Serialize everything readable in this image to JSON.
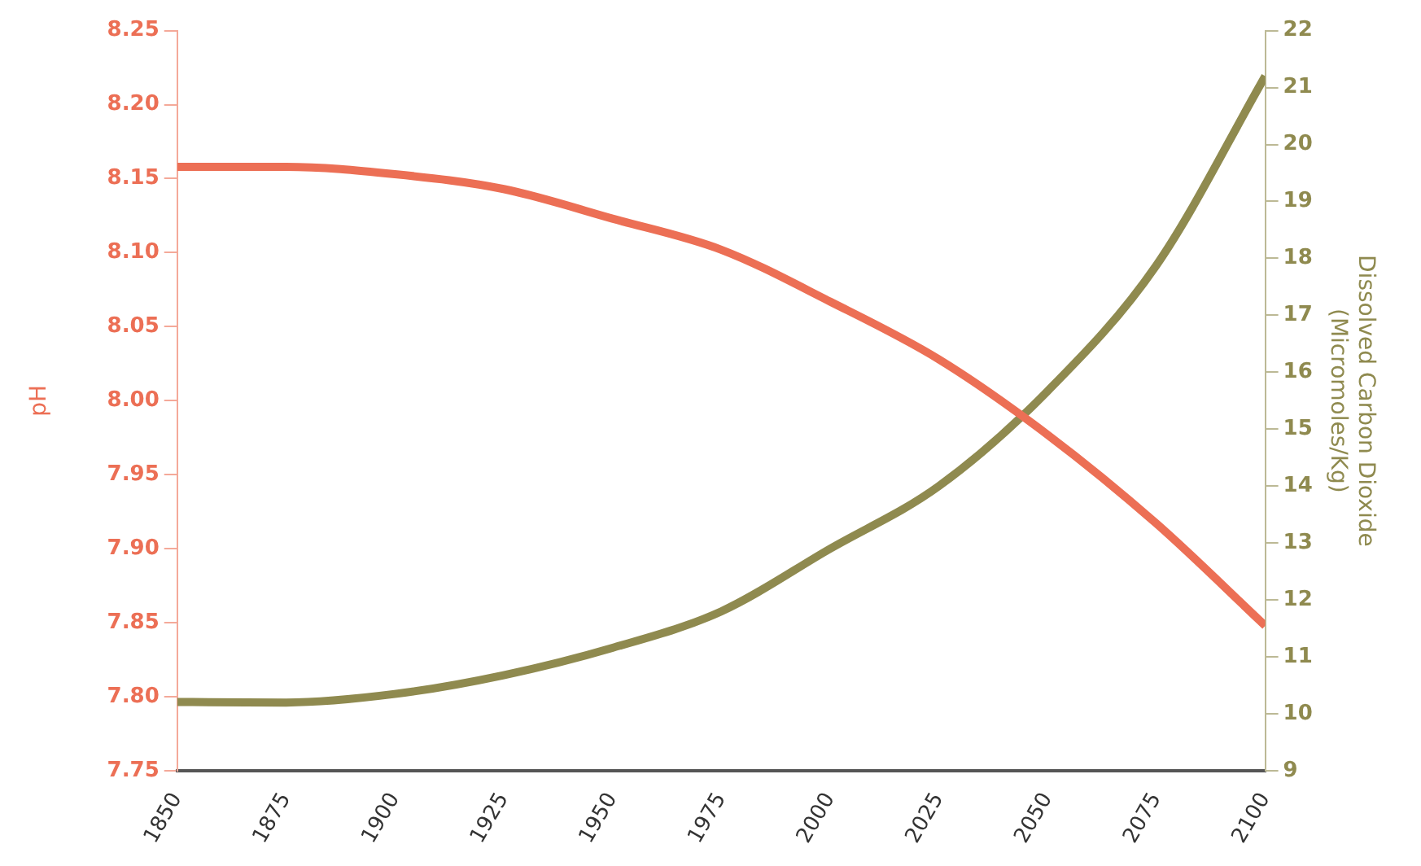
{
  "chart_data": {
    "type": "line",
    "ylabel": "pH",
    "y2label": "Dissolved Carbon Dioxide\n(Micromoles/Kg)",
    "x": [
      1850,
      1875,
      1900,
      1925,
      1950,
      1975,
      2000,
      2025,
      2050,
      2075,
      2100
    ],
    "series": [
      {
        "color": "#ec6f55",
        "values": [
          8.158,
          8.158,
          8.153,
          8.143,
          8.123,
          8.102,
          8.067,
          8.028,
          7.977,
          7.917,
          7.848
        ]
      },
      {
        "color": "#8f8a4f",
        "axis": "y2",
        "values": [
          10.21,
          10.2,
          10.35,
          10.68,
          11.16,
          11.8,
          12.9,
          14.0,
          15.67,
          17.88,
          21.2
        ]
      }
    ],
    "xlim": [
      1850,
      2100
    ],
    "xticks": [
      1850,
      1875,
      1900,
      1925,
      1950,
      1975,
      2000,
      2025,
      2050,
      2075,
      2100
    ],
    "ylim": [
      7.75,
      8.25
    ],
    "yticks": [
      {
        "value": 7.75,
        "label": "7.75"
      },
      {
        "value": 7.8,
        "label": "7.80"
      },
      {
        "value": 7.85,
        "label": "7.85"
      },
      {
        "value": 7.9,
        "label": "7.90"
      },
      {
        "value": 7.95,
        "label": "7.95"
      },
      {
        "value": 8.0,
        "label": "8.00"
      },
      {
        "value": 8.05,
        "label": "8.05"
      },
      {
        "value": 8.1,
        "label": "8.10"
      },
      {
        "value": 8.15,
        "label": "8.15"
      },
      {
        "value": 8.2,
        "label": "8.20"
      },
      {
        "value": 8.25,
        "label": "8.25"
      }
    ],
    "y2lim": [
      9,
      22
    ],
    "y2ticks": [
      9,
      10,
      11,
      12,
      13,
      14,
      15,
      16,
      17,
      18,
      19,
      20,
      21,
      22
    ],
    "grid": false,
    "legend": false,
    "marker": "none",
    "line_style": "solid"
  }
}
